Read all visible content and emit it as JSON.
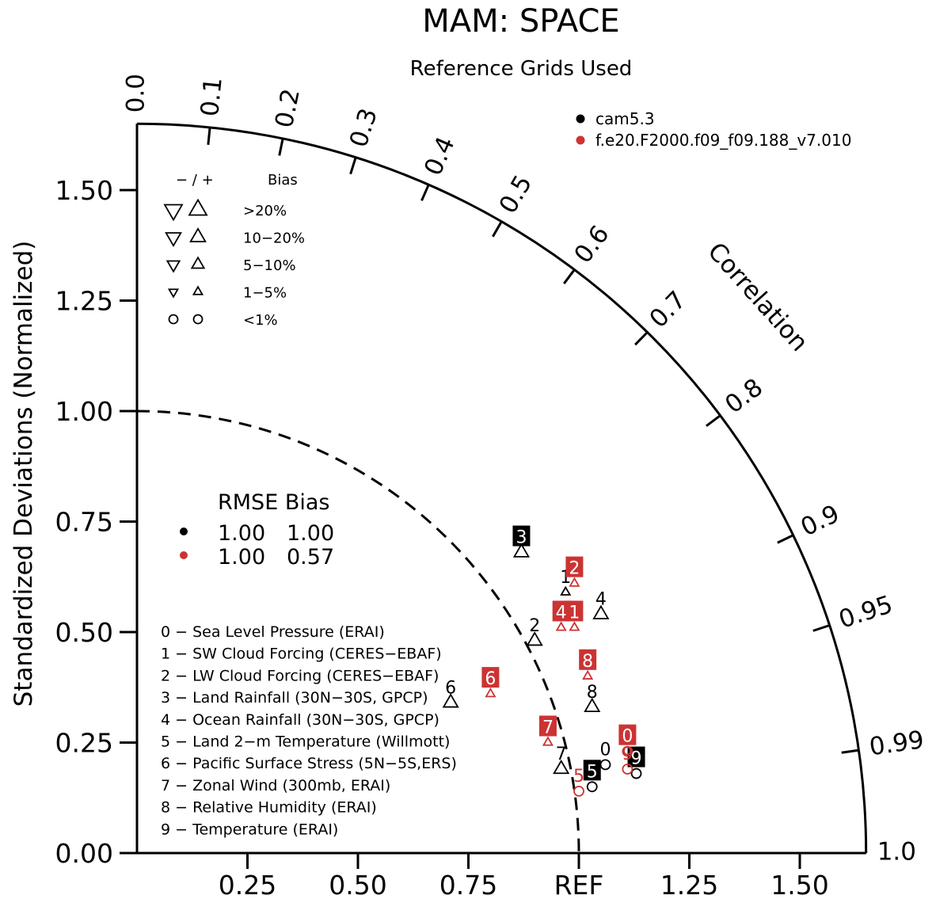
{
  "chart_data": {
    "type": "taylor",
    "title": "MAM: SPACE",
    "subtitle": "Reference Grids Used",
    "ylabel": "Standardized Deviations (Normalized)",
    "arc_label": "Correlation",
    "ref_label": "REF",
    "y_ticks": [
      "0.00",
      "0.25",
      "0.50",
      "0.75",
      "1.00",
      "1.25",
      "1.50"
    ],
    "x_ticks": [
      "0.25",
      "0.50",
      "0.75",
      "REF",
      "1.25",
      "1.50"
    ],
    "corr_ticks": [
      "0.0",
      "0.1",
      "0.2",
      "0.3",
      "0.4",
      "0.5",
      "0.6",
      "0.7",
      "0.8",
      "0.9",
      "0.95",
      "0.99",
      "1.0"
    ],
    "max_std": 1.65,
    "ref_std": 1.0,
    "models": [
      {
        "name": "cam5.3",
        "color": "#000000"
      },
      {
        "name": "f.e20.F2000.f09_f09.188_v7.010",
        "color": "#cc3333"
      }
    ],
    "bias_legend": {
      "header_sign": "−  /  +",
      "header_label": "Bias",
      "rows": [
        {
          "symbol": "triangle",
          "scale": 1.0,
          "label": ">20%"
        },
        {
          "symbol": "triangle",
          "scale": 0.85,
          "label": "10−20%"
        },
        {
          "symbol": "triangle",
          "scale": 0.7,
          "label": "5−10%"
        },
        {
          "symbol": "triangle",
          "scale": 0.5,
          "label": "1−5%"
        },
        {
          "symbol": "circle",
          "scale": 0.7,
          "label": "<1%"
        }
      ]
    },
    "rmse_bias": {
      "header": "RMSE Bias",
      "rows": [
        {
          "color": "#000000",
          "rmse": "1.00",
          "bias": "1.00"
        },
        {
          "color": "#cc3333",
          "rmse": "1.00",
          "bias": "0.57"
        }
      ]
    },
    "variables": [
      "0 − Sea Level Pressure (ERAI)",
      "1 − SW Cloud Forcing (CERES−EBAF)",
      "2 − LW Cloud Forcing (CERES−EBAF)",
      "3 − Land Rainfall (30N−30S, GPCP)",
      "4 − Ocean Rainfall (30N−30S, GPCP)",
      "5 − Land 2−m Temperature (Willmott)",
      "6 − Pacific Surface Stress (5N−5S,ERS)",
      "7 − Zonal Wind (300mb, ERAI)",
      "8 − Relative Humidity (ERAI)",
      "9 − Temperature (ERAI)"
    ],
    "points": [
      {
        "model": 0,
        "id": "0",
        "x": 1.06,
        "y": 0.2,
        "marker": "circle",
        "label_style": "plain"
      },
      {
        "model": 0,
        "id": "1",
        "x": 0.97,
        "y": 0.59,
        "marker": "triangle-up-small",
        "label_style": "plain"
      },
      {
        "model": 0,
        "id": "2",
        "x": 0.9,
        "y": 0.48,
        "marker": "triangle-up",
        "label_style": "plain"
      },
      {
        "model": 0,
        "id": "3",
        "x": 0.87,
        "y": 0.68,
        "marker": "triangle-up",
        "label_style": "box"
      },
      {
        "model": 0,
        "id": "4",
        "x": 1.05,
        "y": 0.54,
        "marker": "triangle-up",
        "label_style": "plain"
      },
      {
        "model": 0,
        "id": "5",
        "x": 1.03,
        "y": 0.15,
        "marker": "circle",
        "label_style": "box"
      },
      {
        "model": 0,
        "id": "6",
        "x": 0.71,
        "y": 0.34,
        "marker": "triangle-up",
        "label_style": "plain"
      },
      {
        "model": 0,
        "id": "7",
        "x": 0.96,
        "y": 0.19,
        "marker": "triangle-up",
        "label_style": "plain"
      },
      {
        "model": 0,
        "id": "8",
        "x": 1.03,
        "y": 0.33,
        "marker": "triangle-up",
        "label_style": "plain"
      },
      {
        "model": 0,
        "id": "9",
        "x": 1.13,
        "y": 0.18,
        "marker": "circle",
        "label_style": "box"
      },
      {
        "model": 1,
        "id": "0",
        "x": 1.11,
        "y": 0.23,
        "marker": "circle",
        "label_style": "box"
      },
      {
        "model": 1,
        "id": "1",
        "x": 0.99,
        "y": 0.51,
        "marker": "triangle-up-small",
        "label_style": "box"
      },
      {
        "model": 1,
        "id": "2",
        "x": 0.99,
        "y": 0.61,
        "marker": "triangle-up-small",
        "label_style": "box"
      },
      {
        "model": 1,
        "id": "4",
        "x": 0.96,
        "y": 0.51,
        "marker": "triangle-up-small",
        "label_style": "box"
      },
      {
        "model": 1,
        "id": "5",
        "x": 1.0,
        "y": 0.14,
        "marker": "circle",
        "label_style": "plain"
      },
      {
        "model": 1,
        "id": "6",
        "x": 0.8,
        "y": 0.36,
        "marker": "triangle-up-small",
        "label_style": "box"
      },
      {
        "model": 1,
        "id": "7",
        "x": 0.93,
        "y": 0.25,
        "marker": "triangle-up-small",
        "label_style": "box"
      },
      {
        "model": 1,
        "id": "8",
        "x": 1.02,
        "y": 0.4,
        "marker": "triangle-up-small",
        "label_style": "box"
      },
      {
        "model": 1,
        "id": "9",
        "x": 1.11,
        "y": 0.19,
        "marker": "circle",
        "label_style": "plain"
      }
    ]
  }
}
